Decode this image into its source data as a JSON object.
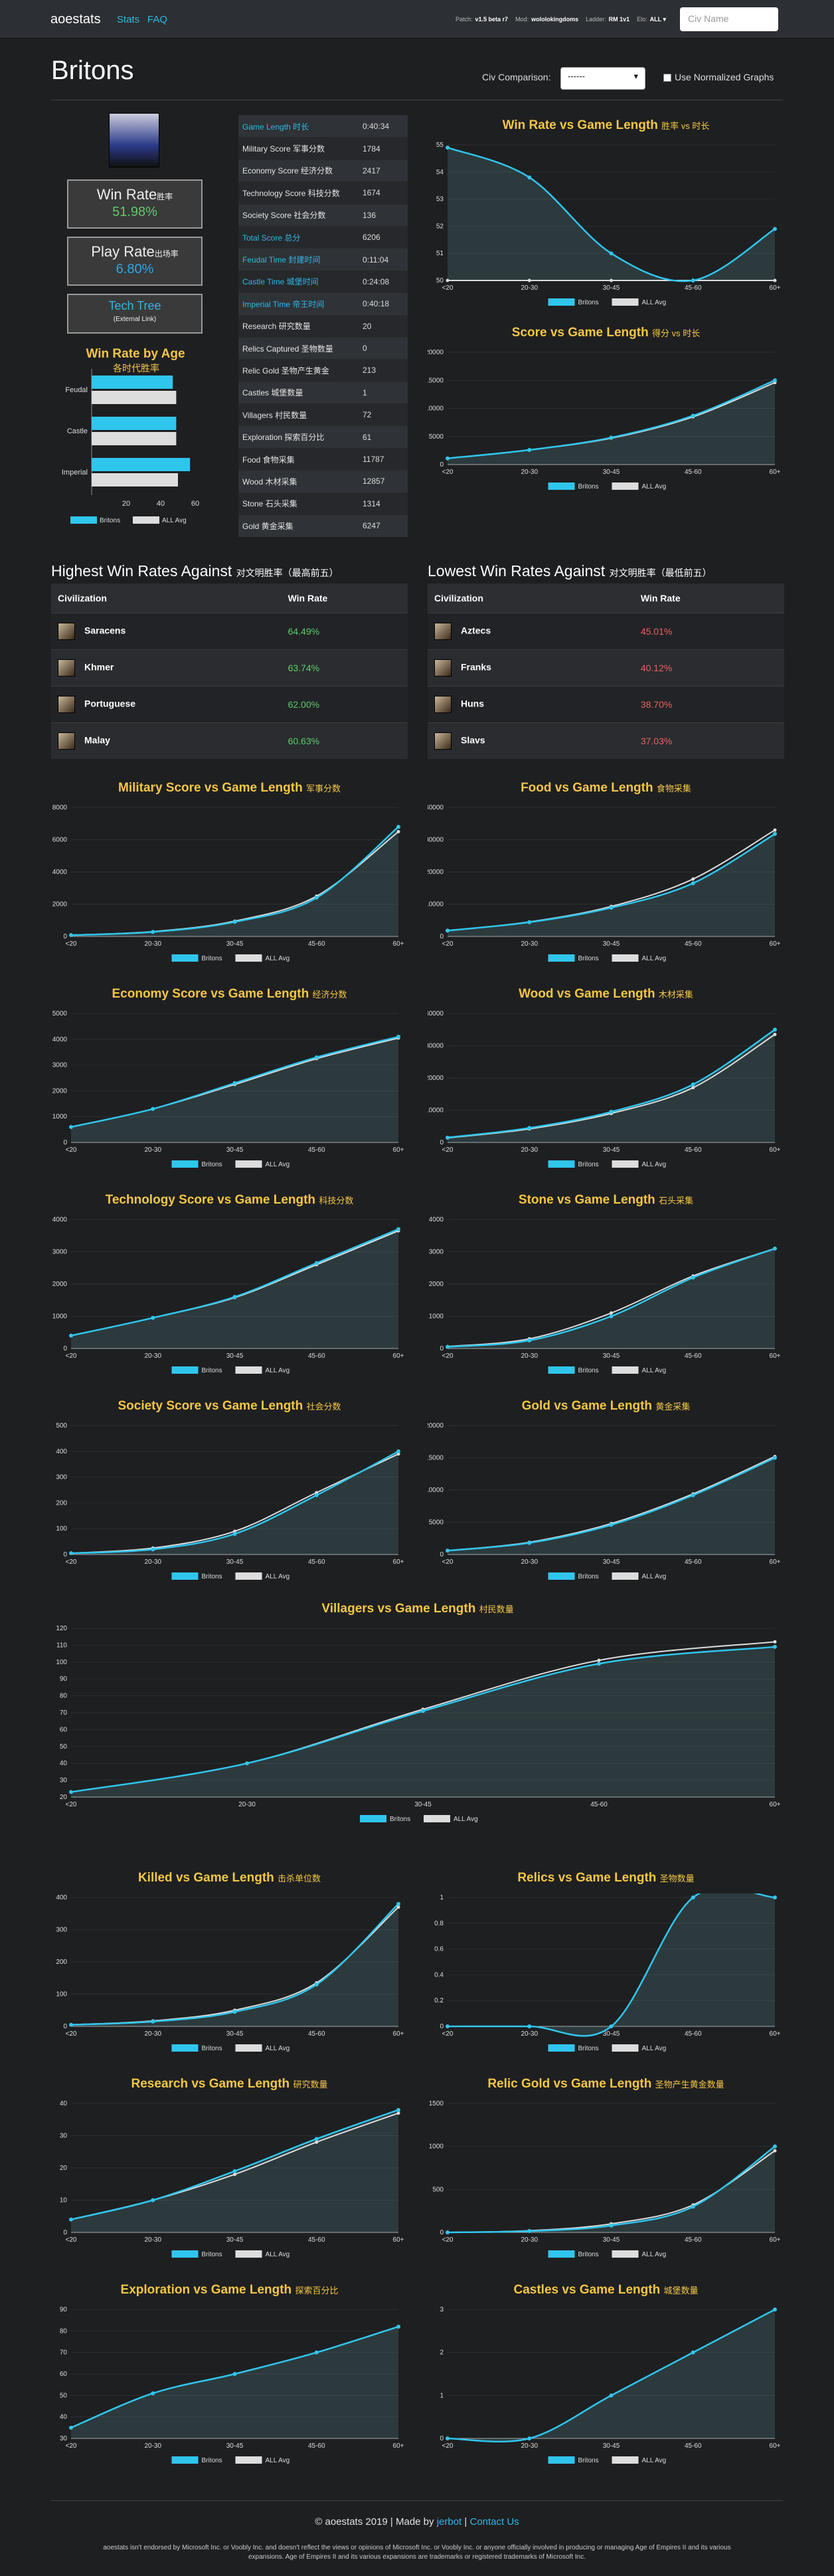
{
  "nav": {
    "brand": "aoestats",
    "stats": "Stats",
    "faq": "FAQ",
    "patch_label": "Patch:",
    "patch_value": "v1.5 beta r7",
    "mod_label": "Mod:",
    "mod_value": "wololokingdoms",
    "ladder_label": "Ladder:",
    "ladder_value": "RM 1v1",
    "elo_label": "Elo:",
    "elo_value": "ALL ▾",
    "search_placeholder": "Civ Name"
  },
  "header": {
    "title": "Britons",
    "comparison_label": "Civ Comparison:",
    "comparison_value": "------",
    "normalize_label": "Use Normalized Graphs"
  },
  "colors": {
    "civ": "#2fc6ee",
    "avg": "#dddddd",
    "title": "#f3c744"
  },
  "summary": {
    "win_rate_label": "Win Rate",
    "win_rate_cn": "胜率",
    "win_rate": "51.98%",
    "play_rate_label": "Play Rate",
    "play_rate_cn": "出场率",
    "play_rate": "6.80%",
    "tech_tree": "Tech Tree",
    "external": "(External Link)"
  },
  "stats_table": [
    {
      "label": "Game Length 时长",
      "value": "0:40:34",
      "hl": true
    },
    {
      "label": "Military Score 军事分数",
      "value": "1784",
      "hl": false
    },
    {
      "label": "Economy Score 经济分数",
      "value": "2417",
      "hl": false
    },
    {
      "label": "Technology Score 科技分数",
      "value": "1674",
      "hl": false
    },
    {
      "label": "Society Score 社会分数",
      "value": "136",
      "hl": false
    },
    {
      "label": "Total Score 总分",
      "value": "6206",
      "hl": true
    },
    {
      "label": "Feudal Time 封建时间",
      "value": "0:11:04",
      "hl": true
    },
    {
      "label": "Castle Time 城堡时间",
      "value": "0:24:08",
      "hl": true
    },
    {
      "label": "Imperial Time 帝王时间",
      "value": "0:40:18",
      "hl": true
    },
    {
      "label": "Research 研究数量",
      "value": "20",
      "hl": false
    },
    {
      "label": "Relics Captured 圣物数量",
      "value": "0",
      "hl": false
    },
    {
      "label": "Relic Gold 圣物产生黄金",
      "value": "213",
      "hl": false
    },
    {
      "label": "Castles 城堡数量",
      "value": "1",
      "hl": false
    },
    {
      "label": "Villagers 村民数量",
      "value": "72",
      "hl": false
    },
    {
      "label": "Exploration 探索百分比",
      "value": "61",
      "hl": false
    },
    {
      "label": "Food 食物采集",
      "value": "11787",
      "hl": false
    },
    {
      "label": "Wood 木材采集",
      "value": "12857",
      "hl": false
    },
    {
      "label": "Stone 石头采集",
      "value": "1314",
      "hl": false
    },
    {
      "label": "Gold 黄金采集",
      "value": "6247",
      "hl": false
    }
  ],
  "age_chart": {
    "title": "Win Rate by Age",
    "subtitle": "各时代胜率",
    "categories": [
      "Feudal",
      "Castle",
      "Imperial"
    ],
    "civ": [
      47,
      49,
      57
    ],
    "avg": [
      49,
      49,
      50
    ],
    "ticks": [
      "20",
      "40",
      "60"
    ],
    "legend_civ": "Britons",
    "legend_avg": "ALL Avg"
  },
  "highest": {
    "title": "Highest Win Rates Against",
    "title_cn": "对文明胜率（最高前五）",
    "col1": "Civilization",
    "col2": "Win Rate",
    "rows": [
      {
        "name": "Saracens",
        "rate": "64.49%"
      },
      {
        "name": "Khmer",
        "rate": "63.74%"
      },
      {
        "name": "Portuguese",
        "rate": "62.00%"
      },
      {
        "name": "Malay",
        "rate": "60.63%"
      }
    ]
  },
  "lowest": {
    "title": "Lowest Win Rates Against",
    "title_cn": "对文明胜率（最低前五）",
    "col1": "Civilization",
    "col2": "Win Rate",
    "rows": [
      {
        "name": "Aztecs",
        "rate": "45.01%"
      },
      {
        "name": "Franks",
        "rate": "40.12%"
      },
      {
        "name": "Huns",
        "rate": "38.70%"
      },
      {
        "name": "Slavs",
        "rate": "37.03%"
      }
    ]
  },
  "chart_data": [
    {
      "type": "line",
      "title": "Win Rate vs Game Length",
      "title_cn": "胜率 vs 时长",
      "x": [
        "<20",
        "20-30",
        "30-45",
        "45-60",
        "60+"
      ],
      "yticks": [
        50,
        51,
        52,
        53,
        54,
        55
      ],
      "ylim": [
        50,
        55
      ],
      "series": [
        {
          "name": "Britons",
          "values": [
            54.9,
            53.8,
            51.0,
            50.0,
            51.9
          ]
        },
        {
          "name": "ALL Avg",
          "values": [
            50.0,
            50.0,
            50.0,
            50.0,
            50.0
          ]
        }
      ]
    },
    {
      "type": "line",
      "title": "Score vs Game Length",
      "title_cn": "得分 vs 时长",
      "x": [
        "<20",
        "20-30",
        "30-45",
        "45-60",
        "60+"
      ],
      "yticks": [
        0,
        5000,
        10000,
        15000,
        20000
      ],
      "ylim": [
        0,
        20000
      ],
      "series": [
        {
          "name": "Britons",
          "values": [
            1100,
            2600,
            4800,
            8700,
            15000
          ]
        },
        {
          "name": "ALL Avg",
          "values": [
            1100,
            2600,
            4700,
            8500,
            14600
          ]
        }
      ]
    },
    {
      "type": "line",
      "title": "Military Score vs Game Length",
      "title_cn": "军事分数",
      "x": [
        "<20",
        "20-30",
        "30-45",
        "45-60",
        "60+"
      ],
      "yticks": [
        0,
        2000,
        4000,
        6000,
        8000
      ],
      "ylim": [
        0,
        8000
      ],
      "series": [
        {
          "name": "Britons",
          "values": [
            80,
            280,
            900,
            2400,
            6800
          ]
        },
        {
          "name": "ALL Avg",
          "values": [
            80,
            300,
            950,
            2500,
            6500
          ]
        }
      ]
    },
    {
      "type": "line",
      "title": "Food vs Game Length",
      "title_cn": "食物采集",
      "x": [
        "<20",
        "20-30",
        "30-45",
        "45-60",
        "60+"
      ],
      "yticks": [
        0,
        10000,
        20000,
        30000,
        40000
      ],
      "ylim": [
        0,
        40000
      ],
      "series": [
        {
          "name": "Britons",
          "values": [
            1800,
            4400,
            8900,
            16500,
            31800
          ]
        },
        {
          "name": "ALL Avg",
          "values": [
            1800,
            4500,
            9300,
            17800,
            33000
          ]
        }
      ]
    },
    {
      "type": "line",
      "title": "Economy Score vs Game Length",
      "title_cn": "经济分数",
      "x": [
        "<20",
        "20-30",
        "30-45",
        "45-60",
        "60+"
      ],
      "yticks": [
        0,
        1000,
        2000,
        3000,
        4000,
        5000
      ],
      "ylim": [
        0,
        5000
      ],
      "series": [
        {
          "name": "Britons",
          "values": [
            600,
            1300,
            2300,
            3300,
            4100
          ]
        },
        {
          "name": "ALL Avg",
          "values": [
            600,
            1300,
            2250,
            3250,
            4050
          ]
        }
      ]
    },
    {
      "type": "line",
      "title": "Wood vs Game Length",
      "title_cn": "木材采集",
      "x": [
        "<20",
        "20-30",
        "30-45",
        "45-60",
        "60+"
      ],
      "yticks": [
        0,
        10000,
        20000,
        30000,
        40000
      ],
      "ylim": [
        0,
        40000
      ],
      "series": [
        {
          "name": "Britons",
          "values": [
            1500,
            4500,
            9500,
            18000,
            35000
          ]
        },
        {
          "name": "ALL Avg",
          "values": [
            1400,
            4200,
            9000,
            17000,
            33500
          ]
        }
      ]
    },
    {
      "type": "line",
      "title": "Technology Score vs Game Length",
      "title_cn": "科技分数",
      "x": [
        "<20",
        "20-30",
        "30-45",
        "45-60",
        "60+"
      ],
      "yticks": [
        0,
        1000,
        2000,
        3000,
        4000
      ],
      "ylim": [
        0,
        4000
      ],
      "series": [
        {
          "name": "Britons",
          "values": [
            400,
            950,
            1600,
            2650,
            3700
          ]
        },
        {
          "name": "ALL Avg",
          "values": [
            400,
            950,
            1580,
            2600,
            3650
          ]
        }
      ]
    },
    {
      "type": "line",
      "title": "Stone vs Game Length",
      "title_cn": "石头采集",
      "x": [
        "<20",
        "20-30",
        "30-45",
        "45-60",
        "60+"
      ],
      "yticks": [
        0,
        1000,
        2000,
        3000,
        4000
      ],
      "ylim": [
        0,
        4000
      ],
      "series": [
        {
          "name": "Britons",
          "values": [
            50,
            250,
            1000,
            2200,
            3100
          ]
        },
        {
          "name": "ALL Avg",
          "values": [
            60,
            300,
            1100,
            2250,
            3100
          ]
        }
      ]
    },
    {
      "type": "line",
      "title": "Society Score vs Game Length",
      "title_cn": "社会分数",
      "x": [
        "<20",
        "20-30",
        "30-45",
        "45-60",
        "60+"
      ],
      "yticks": [
        0,
        100,
        200,
        300,
        400,
        500
      ],
      "ylim": [
        0,
        500
      ],
      "series": [
        {
          "name": "Britons",
          "values": [
            5,
            20,
            80,
            230,
            400
          ]
        },
        {
          "name": "ALL Avg",
          "values": [
            5,
            25,
            90,
            240,
            390
          ]
        }
      ]
    },
    {
      "type": "line",
      "title": "Gold vs Game Length",
      "title_cn": "黄金采集",
      "x": [
        "<20",
        "20-30",
        "30-45",
        "45-60",
        "60+"
      ],
      "yticks": [
        0,
        5000,
        10000,
        15000,
        20000
      ],
      "ylim": [
        0,
        20000
      ],
      "series": [
        {
          "name": "Britons",
          "values": [
            600,
            1800,
            4600,
            9200,
            15000
          ]
        },
        {
          "name": "ALL Avg",
          "values": [
            600,
            1900,
            4800,
            9400,
            15200
          ]
        }
      ]
    },
    {
      "type": "line",
      "title": "Villagers vs Game Length",
      "title_cn": "村民数量",
      "x": [
        "<20",
        "20-30",
        "30-45",
        "45-60",
        "60+"
      ],
      "yticks": [
        20,
        30,
        40,
        50,
        60,
        70,
        80,
        90,
        100,
        110,
        120
      ],
      "ylim": [
        20,
        120
      ],
      "series": [
        {
          "name": "Britons",
          "values": [
            23,
            40,
            71,
            99,
            109
          ]
        },
        {
          "name": "ALL Avg",
          "values": [
            23,
            40,
            72,
            101,
            112
          ]
        }
      ]
    },
    {
      "type": "line",
      "title": "Killed vs Game Length",
      "title_cn": "击杀单位数",
      "x": [
        "<20",
        "20-30",
        "30-45",
        "45-60",
        "60+"
      ],
      "yticks": [
        0,
        100,
        200,
        300,
        400
      ],
      "ylim": [
        0,
        400
      ],
      "series": [
        {
          "name": "Britons",
          "values": [
            5,
            15,
            45,
            130,
            380
          ]
        },
        {
          "name": "ALL Avg",
          "values": [
            5,
            17,
            50,
            135,
            370
          ]
        }
      ]
    },
    {
      "type": "line",
      "title": "Relics vs Game Length",
      "title_cn": "圣物数量",
      "x": [
        "<20",
        "20-30",
        "30-45",
        "45-60",
        "60+"
      ],
      "yticks": [
        0,
        0.2,
        0.4,
        0.6,
        0.8,
        1.0
      ],
      "ylim": [
        0,
        1
      ],
      "series": [
        {
          "name": "Britons",
          "values": [
            0,
            0,
            0,
            1,
            1
          ]
        },
        {
          "name": "ALL Avg",
          "values": [
            0,
            0,
            0,
            1,
            1
          ]
        }
      ]
    },
    {
      "type": "line",
      "title": "Research vs Game Length",
      "title_cn": "研究数量",
      "x": [
        "<20",
        "20-30",
        "30-45",
        "45-60",
        "60+"
      ],
      "yticks": [
        0,
        10,
        20,
        30,
        40
      ],
      "ylim": [
        0,
        40
      ],
      "series": [
        {
          "name": "Britons",
          "values": [
            4,
            10,
            19,
            29,
            38
          ]
        },
        {
          "name": "ALL Avg",
          "values": [
            4,
            10,
            18,
            28,
            37
          ]
        }
      ]
    },
    {
      "type": "line",
      "title": "Relic Gold vs Game Length",
      "title_cn": "圣物产生黄金数量",
      "x": [
        "<20",
        "20-30",
        "30-45",
        "45-60",
        "60+"
      ],
      "yticks": [
        0,
        500,
        1000,
        1500
      ],
      "ylim": [
        0,
        1500
      ],
      "series": [
        {
          "name": "Britons",
          "values": [
            0,
            15,
            80,
            300,
            1000
          ]
        },
        {
          "name": "ALL Avg",
          "values": [
            0,
            20,
            100,
            320,
            950
          ]
        }
      ]
    },
    {
      "type": "line",
      "title": "Exploration vs Game Length",
      "title_cn": "探索百分比",
      "x": [
        "<20",
        "20-30",
        "30-45",
        "45-60",
        "60+"
      ],
      "yticks": [
        30,
        40,
        50,
        60,
        70,
        80,
        90
      ],
      "ylim": [
        30,
        90
      ],
      "series": [
        {
          "name": "Britons",
          "values": [
            35,
            51,
            60,
            70,
            82
          ]
        },
        {
          "name": "ALL Avg",
          "values": [
            35,
            51,
            60,
            70,
            82
          ]
        }
      ]
    },
    {
      "type": "line",
      "title": "Castles vs Game Length",
      "title_cn": "城堡数量",
      "x": [
        "<20",
        "20-30",
        "30-45",
        "45-60",
        "60+"
      ],
      "yticks": [
        0,
        1,
        2,
        3
      ],
      "ylim": [
        0,
        3
      ],
      "series": [
        {
          "name": "Britons",
          "values": [
            0,
            0,
            1,
            2,
            3
          ]
        },
        {
          "name": "ALL Avg",
          "values": [
            0,
            0,
            1,
            2,
            3
          ]
        }
      ]
    }
  ],
  "footer": {
    "copyright": "© aoestats 2019 | Made by",
    "author": "jerbot",
    "sep": "|",
    "contact": "Contact Us",
    "disclaimer1": "aoestats isn't endorsed by Microsoft Inc. or Voobly Inc. and doesn't reflect the views or opinions of Microsoft Inc. or Voobly Inc. or anyone officially involved in producing or managing Age of Empires II and its various",
    "disclaimer2": "expansions. Age of Empires II and its various expansions are trademarks or registered trademarks of Microsoft Inc."
  }
}
